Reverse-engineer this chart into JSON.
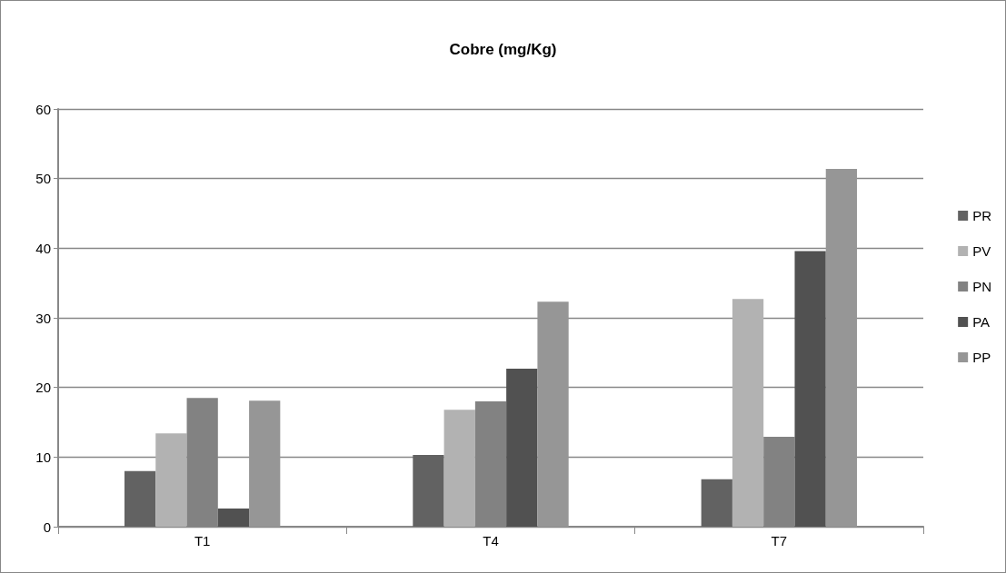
{
  "chart_data": {
    "type": "bar",
    "title": "Cobre (mg/Kg)",
    "categories": [
      "T1",
      "T4",
      "T7"
    ],
    "series": [
      {
        "name": "PR",
        "color": "#626262",
        "values": [
          8.0,
          10.3,
          6.8
        ]
      },
      {
        "name": "PV",
        "color": "#b2b2b2",
        "values": [
          13.4,
          16.8,
          32.7
        ]
      },
      {
        "name": "PN",
        "color": "#828282",
        "values": [
          18.5,
          18.0,
          12.9
        ]
      },
      {
        "name": "PA",
        "color": "#515151",
        "values": [
          2.6,
          22.7,
          39.6
        ]
      },
      {
        "name": "PP",
        "color": "#969696",
        "values": [
          18.1,
          32.3,
          51.4
        ]
      }
    ],
    "ylim": [
      0,
      60
    ],
    "yticks": [
      0,
      10,
      20,
      30,
      40,
      50,
      60
    ],
    "grid": "y",
    "legend": "right"
  }
}
